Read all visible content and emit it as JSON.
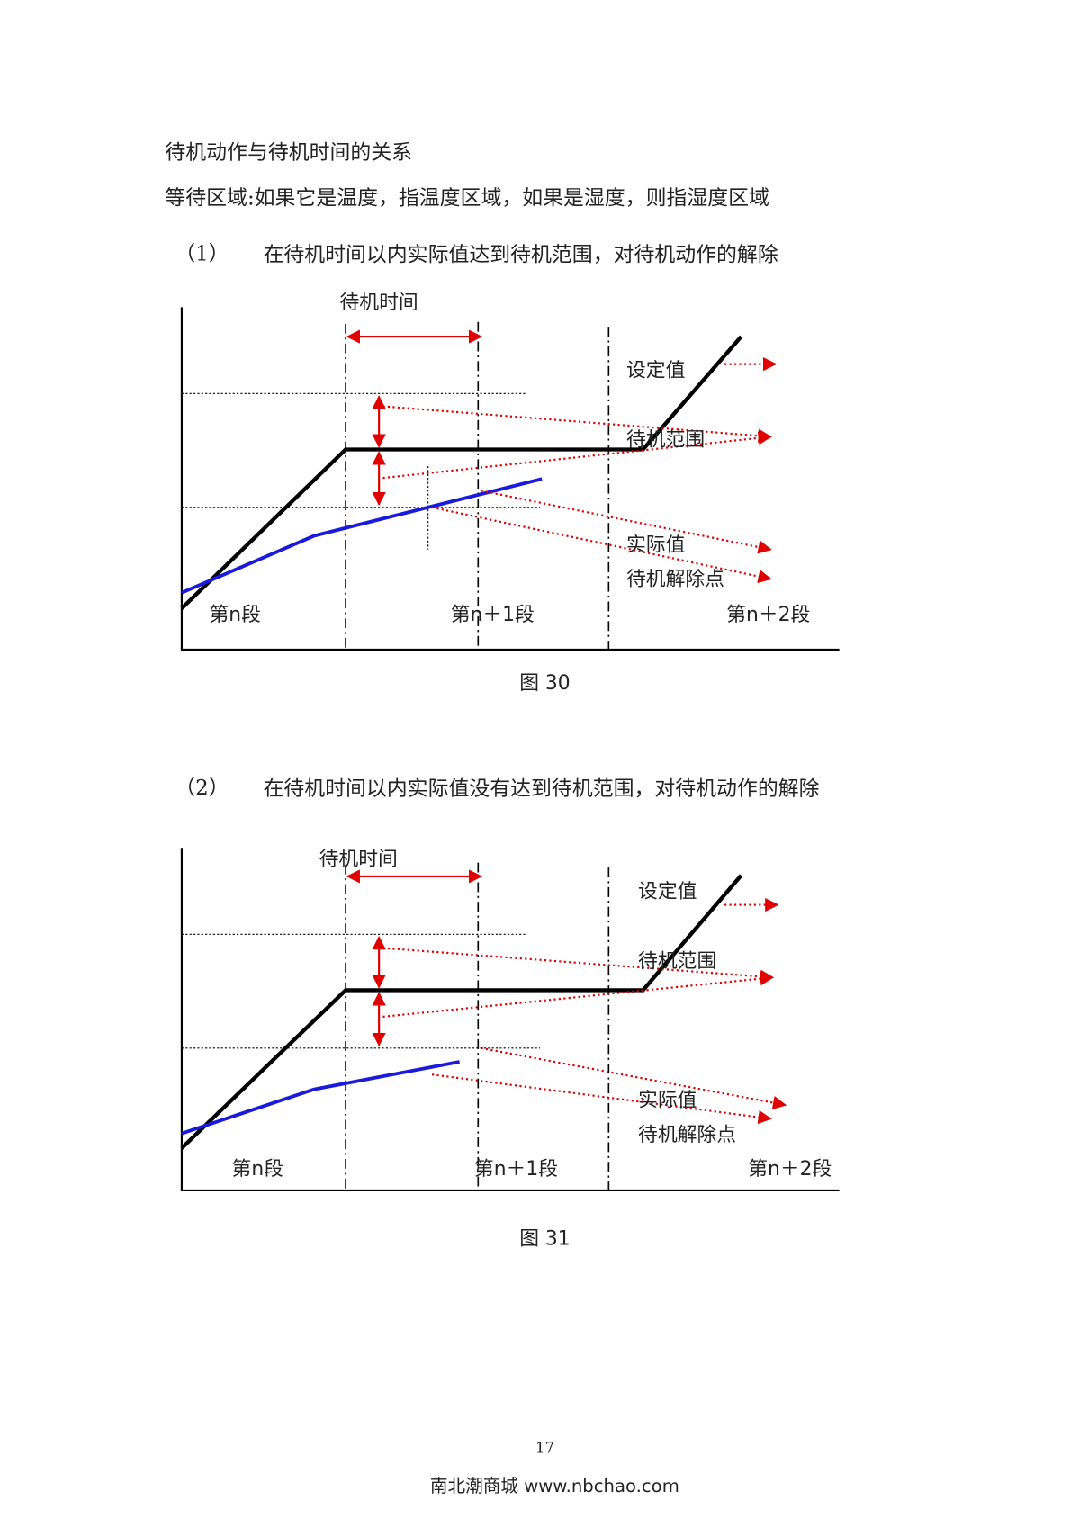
{
  "heading": "待机动作与待机时间的关系",
  "intro": "等待区域:如果它是温度，指温度区域，如果是湿度，则指湿度区域",
  "sections": [
    {
      "number": "（1）",
      "text": "在待机时间以内实际值达到待机范围，对待机动作的解除",
      "diagram": {
        "wait_time": "待机时间",
        "setpoint": "设定值",
        "wait_range": "待机范围",
        "actual": "实际值",
        "release": "待机解除点",
        "segments": [
          "第n段",
          "第n＋1段",
          "第n＋2段"
        ]
      },
      "caption": "图 30"
    },
    {
      "number": "（2）",
      "text": "在待机时间以内实际值没有达到待机范围，对待机动作的解除",
      "diagram": {
        "wait_time": "待机时间",
        "setpoint": "设定值",
        "wait_range": "待机范围",
        "actual": "实际值",
        "release": "待机解除点",
        "segments": [
          "第n段",
          "第n＋1段",
          "第n＋2段"
        ]
      },
      "caption": "图 31"
    }
  ],
  "page_number": "17",
  "footer": "南北潮商城 www.nbchao.com"
}
